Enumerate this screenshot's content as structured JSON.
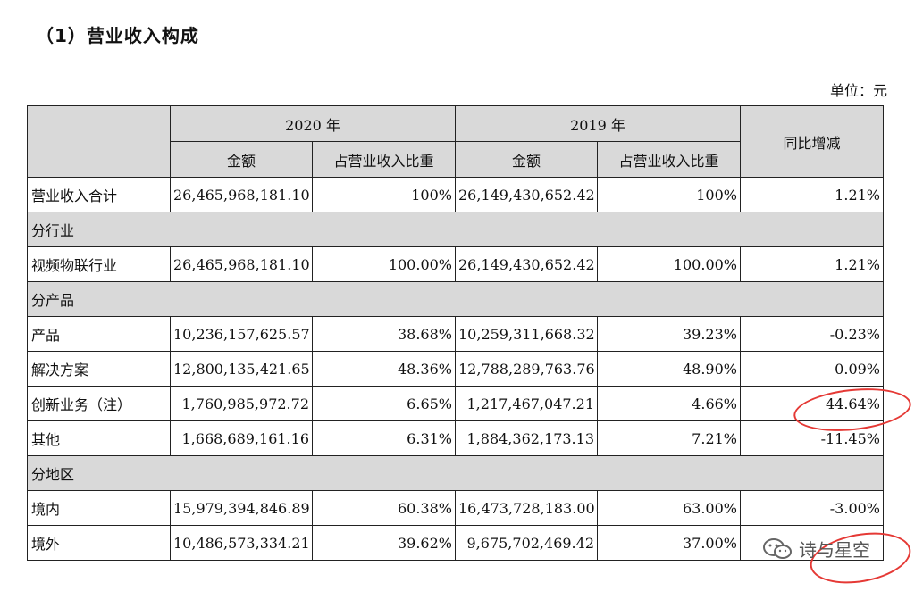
{
  "heading": "（1）营业收入构成",
  "unit": "单位：元",
  "table": {
    "header": {
      "corner": "",
      "year_2020": "2020 年",
      "year_2019": "2019 年",
      "change": "同比增减",
      "amount": "金额",
      "ratio": "占营业收入比重"
    },
    "total": {
      "label": "营业收入合计",
      "a2020": "26,465,968,181.10",
      "r2020": "100%",
      "a2019": "26,149,430,652.42",
      "r2019": "100%",
      "change": "1.21%"
    },
    "sec_industry": "分行业",
    "industry": {
      "label": "视频物联行业",
      "a2020": "26,465,968,181.10",
      "r2020": "100.00%",
      "a2019": "26,149,430,652.42",
      "r2019": "100.00%",
      "change": "1.21%"
    },
    "sec_product": "分产品",
    "products": [
      {
        "label": "产品",
        "a2020": "10,236,157,625.57",
        "r2020": "38.68%",
        "a2019": "10,259,311,668.32",
        "r2019": "39.23%",
        "change": "-0.23%"
      },
      {
        "label": "解决方案",
        "a2020": "12,800,135,421.65",
        "r2020": "48.36%",
        "a2019": "12,788,289,763.76",
        "r2019": "48.90%",
        "change": "0.09%"
      },
      {
        "label": "创新业务（注）",
        "a2020": "1,760,985,972.72",
        "r2020": "6.65%",
        "a2019": "1,217,467,047.21",
        "r2019": "4.66%",
        "change": "44.64%"
      },
      {
        "label": "其他",
        "a2020": "1,668,689,161.16",
        "r2020": "6.31%",
        "a2019": "1,884,362,173.13",
        "r2019": "7.21%",
        "change": "-11.45%"
      }
    ],
    "sec_region": "分地区",
    "regions": [
      {
        "label": "境内",
        "a2020": "15,979,394,846.89",
        "r2020": "60.38%",
        "a2019": "16,473,728,183.00",
        "r2019": "63.00%",
        "change": "-3.00%"
      },
      {
        "label": "境外",
        "a2020": "10,486,573,334.21",
        "r2020": "39.62%",
        "a2019": "9,675,702,469.42",
        "r2019": "37.00%",
        "change": ""
      }
    ]
  },
  "watermark": {
    "text": "诗与星空",
    "icon": "wechat-icon"
  },
  "highlight_color": "#e53935"
}
